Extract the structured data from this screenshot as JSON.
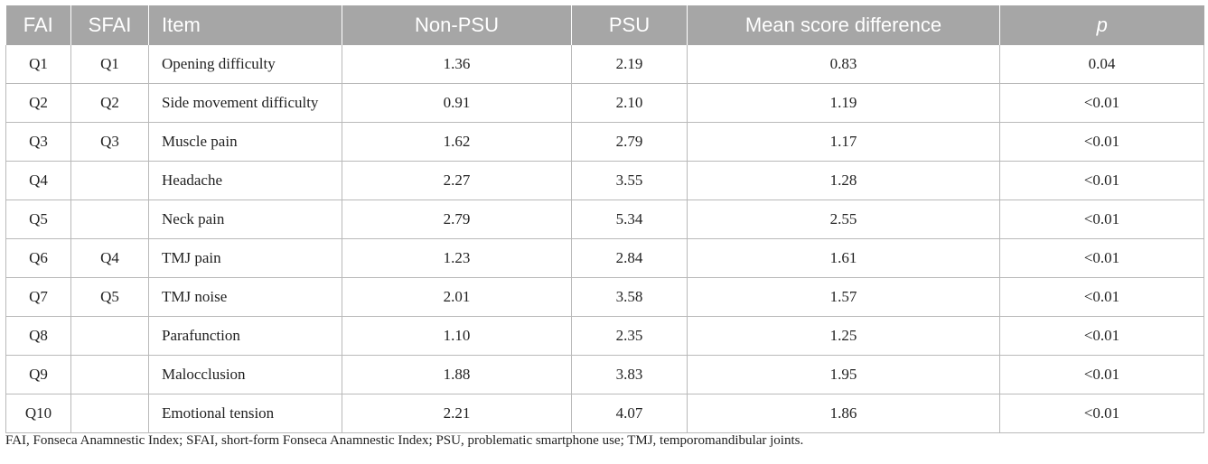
{
  "table": {
    "headers": [
      "FAI",
      "SFAI",
      "Item",
      "Non-PSU",
      "PSU",
      "Mean score difference",
      "p"
    ],
    "rows": [
      [
        "Q1",
        "Q1",
        "Opening difficulty",
        "1.36",
        "2.19",
        "0.83",
        "0.04"
      ],
      [
        "Q2",
        "Q2",
        "Side movement difficulty",
        "0.91",
        "2.10",
        "1.19",
        "<0.01"
      ],
      [
        "Q3",
        "Q3",
        "Muscle pain",
        "1.62",
        "2.79",
        "1.17",
        "<0.01"
      ],
      [
        "Q4",
        "",
        "Headache",
        "2.27",
        "3.55",
        "1.28",
        "<0.01"
      ],
      [
        "Q5",
        "",
        "Neck pain",
        "2.79",
        "5.34",
        "2.55",
        "<0.01"
      ],
      [
        "Q6",
        "Q4",
        "TMJ pain",
        "1.23",
        "2.84",
        "1.61",
        "<0.01"
      ],
      [
        "Q7",
        "Q5",
        "TMJ noise",
        "2.01",
        "3.58",
        "1.57",
        "<0.01"
      ],
      [
        "Q8",
        "",
        "Parafunction",
        "1.10",
        "2.35",
        "1.25",
        "<0.01"
      ],
      [
        "Q9",
        "",
        "Malocclusion",
        "1.88",
        "3.83",
        "1.95",
        "<0.01"
      ],
      [
        "Q10",
        "",
        "Emotional tension",
        "2.21",
        "4.07",
        "1.86",
        "<0.01"
      ]
    ]
  },
  "footnote": "FAI, Fonseca Anamnestic Index; SFAI, short-form Fonseca Anamnestic Index; PSU, problematic smartphone use; TMJ, temporomandibular joints."
}
